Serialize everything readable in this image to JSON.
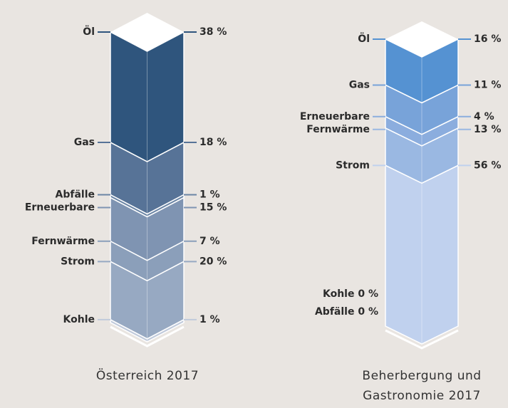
{
  "chart_data": [
    {
      "type": "stacked-column",
      "title": "Österreich 2017",
      "categories": [
        "Öl",
        "Gas",
        "Abfälle",
        "Erneuerbare",
        "Fernwärme",
        "Strom",
        "Kohle"
      ],
      "values": [
        38,
        18,
        1,
        15,
        7,
        20,
        1
      ],
      "value_labels": [
        "38 %",
        "18 %",
        "1 %",
        "15 %",
        "7 %",
        "20 %",
        "1 %"
      ],
      "colors": [
        "#2f557d",
        "#577397",
        "#6b85a5",
        "#7f94b2",
        "#8b9fba",
        "#97a9c2",
        "#c0cadb"
      ]
    },
    {
      "type": "stacked-column",
      "title": "Beherbergung und Gastronomie 2017",
      "categories": [
        "Öl",
        "Gas",
        "Erneuerbare",
        "Fernwärme",
        "Strom",
        "Kohle",
        "Abfälle"
      ],
      "values": [
        16,
        11,
        4,
        13,
        56,
        0,
        0
      ],
      "value_labels": [
        "16 %",
        "11 %",
        "4 %",
        "13 %",
        "56 %",
        "0 %",
        "0 %"
      ],
      "colors": [
        "#5592d2",
        "#78a3d9",
        "#8badde",
        "#9ab8e2",
        "#c0d1ee",
        "#c0d1ee",
        "#c0d1ee"
      ]
    }
  ]
}
